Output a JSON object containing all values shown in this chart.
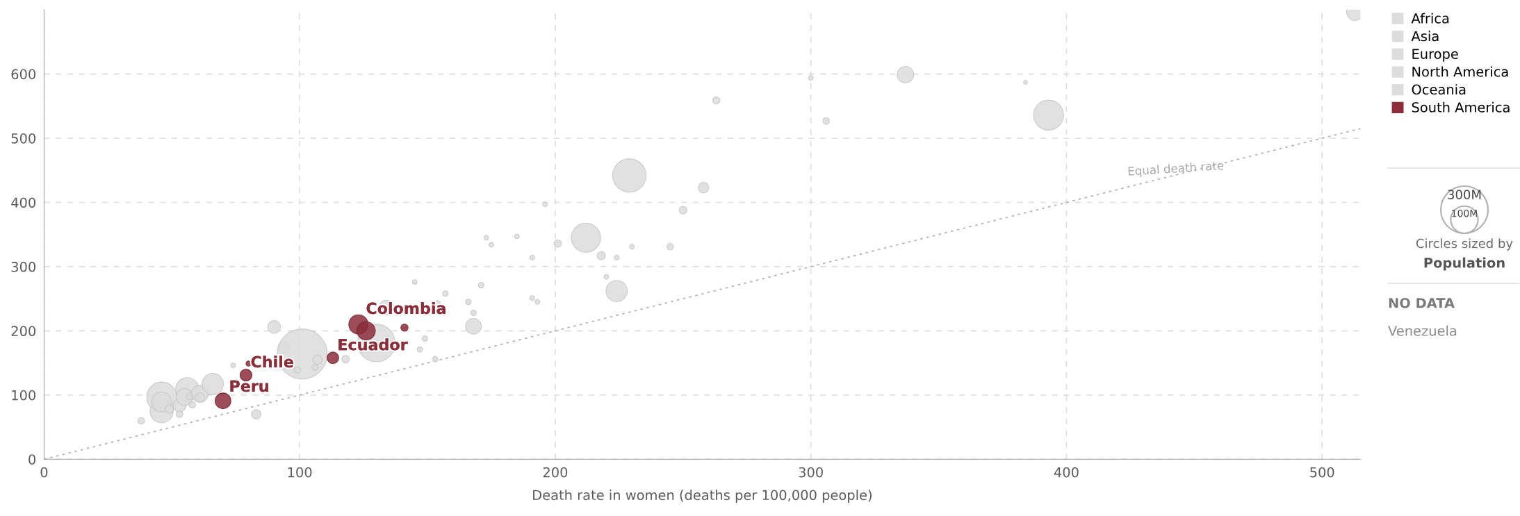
{
  "chart_data": {
    "type": "bubble",
    "xlabel": "Death rate in women (deaths per 100,000 people)",
    "xlim": [
      0,
      515
    ],
    "ylim": [
      0,
      700
    ],
    "xticks": [
      0,
      100,
      200,
      300,
      400,
      500
    ],
    "yticks": [
      0,
      100,
      200,
      300,
      400,
      500,
      600
    ],
    "grid": true,
    "legend": "right",
    "size_legend": [
      {
        "value": 300,
        "label": "300M"
      },
      {
        "value": 100,
        "label": "100M"
      }
    ],
    "annotations": [
      "Circles sized by",
      "Population",
      "NO DATA",
      "Venezuela"
    ],
    "series": [
      {
        "name": "Africa",
        "color": "#dcdcdc"
      },
      {
        "name": "Asia",
        "color": "#dcdcdc"
      },
      {
        "name": "Europe",
        "color": "#dcdcdc"
      },
      {
        "name": "North America",
        "color": "#dcdcdc"
      },
      {
        "name": "Oceania",
        "color": "#dcdcdc"
      },
      {
        "color": "#dcdcdc",
        "x": [
          38,
          46,
          46,
          46,
          49,
          53,
          53,
          56,
          55,
          57,
          58,
          61,
          61,
          66,
          74,
          83,
          90,
          94,
          101,
          107,
          106,
          99,
          118,
          130,
          134,
          145,
          149,
          147,
          153,
          154,
          157,
          166,
          168,
          171,
          168,
          173,
          175,
          185,
          196,
          191,
          191,
          193,
          201,
          212,
          218,
          220,
          224,
          224,
          230,
          229,
          245,
          250,
          258,
          263,
          300,
          306,
          337,
          384,
          393,
          513
        ],
        "values": [
          60,
          97,
          75,
          89,
          78,
          84,
          70,
          109,
          97,
          98,
          85,
          102,
          96,
          117,
          146,
          70,
          206,
          174,
          164,
          155,
          143,
          139,
          156,
          181,
          236,
          276,
          188,
          171,
          156,
          243,
          258,
          245,
          228,
          271,
          207,
          345,
          334,
          347,
          397,
          314,
          251,
          245,
          336,
          345,
          317,
          284,
          314,
          262,
          331,
          442,
          331,
          388,
          423,
          559,
          594,
          527,
          599,
          587,
          536,
          697
        ],
        "sizes": [
          6,
          120,
          73,
          54,
          9,
          24,
          6,
          73,
          38,
          6,
          6,
          38,
          12,
          62,
          3,
          12,
          22,
          20,
          336,
          12,
          5,
          6,
          8,
          190,
          30,
          3,
          4,
          4,
          4,
          4,
          4,
          4,
          4,
          4,
          33,
          3,
          3,
          3,
          3,
          3,
          3,
          3,
          7,
          115,
          9,
          3,
          3,
          61,
          3,
          150,
          6,
          8,
          15,
          7,
          3,
          6,
          37,
          2,
          121,
          41
        ]
      },
      {
        "name": "South America",
        "color": "#8b2e3a",
        "x": [
          70,
          79,
          80,
          113,
          123,
          126,
          141
        ],
        "values": [
          91,
          131,
          149,
          158,
          210,
          200,
          205
        ],
        "sizes": [
          33,
          19,
          3.5,
          18,
          50,
          45,
          7
        ],
        "value_labels": [
          "Peru",
          "Chile",
          null,
          "Ecuador",
          "Colombia",
          null,
          null
        ]
      },
      {
        "name": "Equal death rate",
        "type": "line",
        "color": "#b4b4b4",
        "line_style": "dotted",
        "x": [
          0,
          515
        ],
        "values": [
          0,
          515
        ]
      }
    ]
  }
}
